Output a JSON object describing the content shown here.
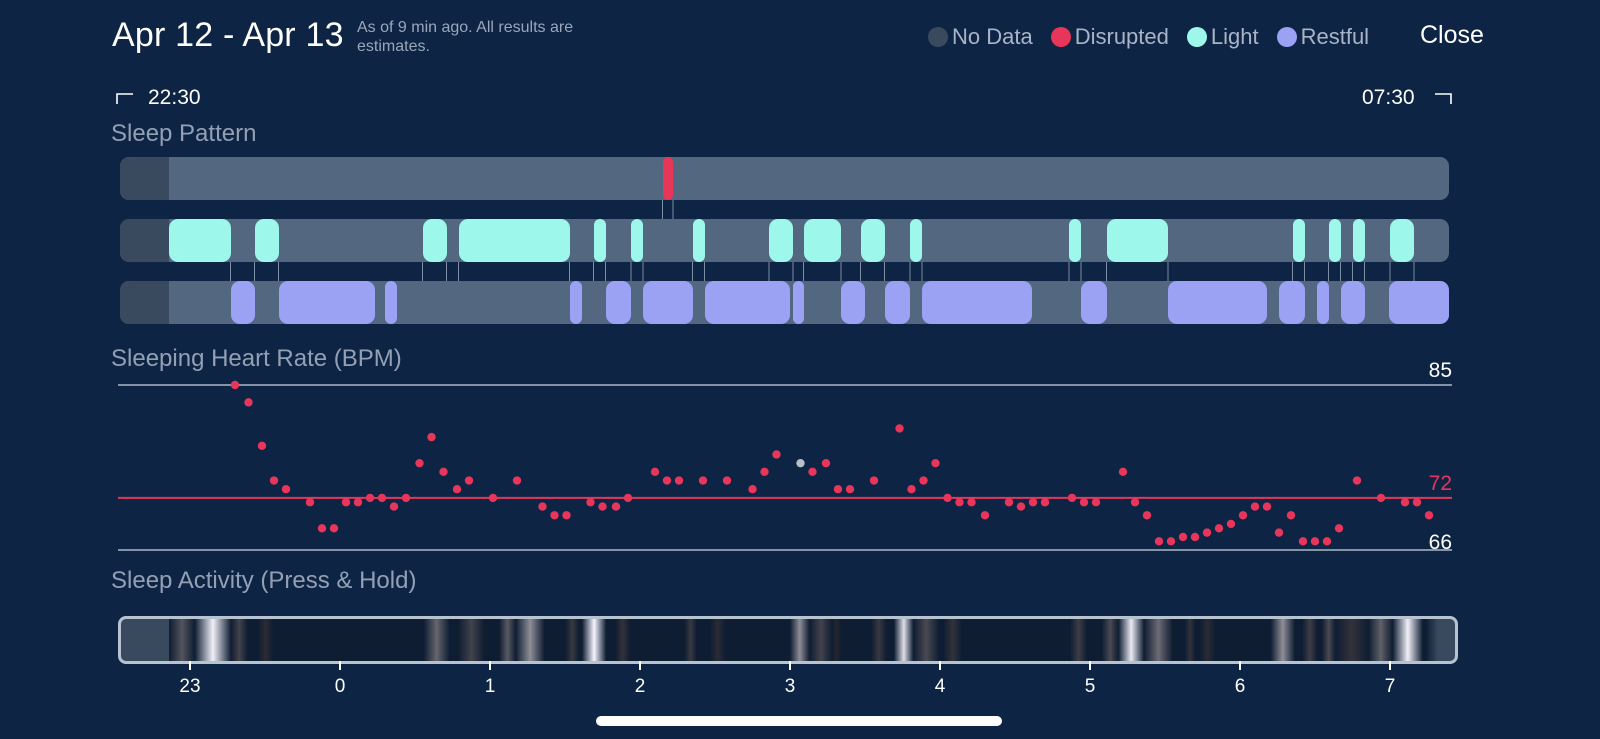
{
  "header": {
    "title": "Apr 12 - Apr 13",
    "note": "As of 9 min ago. All results are estimates.",
    "close_label": "Close"
  },
  "legend": [
    {
      "label": "No Data",
      "color": "#3a4a5e"
    },
    {
      "label": "Disrupted",
      "color": "#e8355a"
    },
    {
      "label": "Light",
      "color": "#9ef7eb"
    },
    {
      "label": "Restful",
      "color": "#9ba1f3"
    }
  ],
  "timeline": {
    "start_label": "22:30",
    "end_label": "07:30"
  },
  "sleep_pattern": {
    "title": "Sleep Pattern",
    "colors": {
      "no_data": "#3a4a5e",
      "track": "#536781",
      "disrupted": "#e8355a",
      "light": "#9ef7eb",
      "restful": "#9ba1f3"
    },
    "no_data_end_hour": -1.14,
    "disrupted": [
      [
        2.15,
        2.22
      ]
    ],
    "light": [
      [
        -1.14,
        -0.73
      ],
      [
        -0.57,
        -0.41
      ],
      [
        0.55,
        0.71
      ],
      [
        0.79,
        1.53
      ],
      [
        1.69,
        1.77
      ],
      [
        1.94,
        2.02
      ],
      [
        2.35,
        2.43
      ],
      [
        2.86,
        3.02
      ],
      [
        3.09,
        3.34
      ],
      [
        3.47,
        3.63
      ],
      [
        3.8,
        3.88
      ],
      [
        4.86,
        4.94
      ],
      [
        5.11,
        5.52
      ],
      [
        6.35,
        6.43
      ],
      [
        6.59,
        6.67
      ],
      [
        6.75,
        6.83
      ],
      [
        7.0,
        7.16
      ]
    ],
    "restful": [
      [
        -0.73,
        -0.57
      ],
      [
        -0.41,
        0.23
      ],
      [
        0.3,
        0.38
      ],
      [
        1.53,
        1.61
      ],
      [
        1.77,
        1.94
      ],
      [
        2.02,
        2.35
      ],
      [
        2.43,
        3.0
      ],
      [
        3.02,
        3.09
      ],
      [
        3.34,
        3.5
      ],
      [
        3.63,
        3.8
      ],
      [
        3.88,
        4.61
      ],
      [
        4.94,
        5.11
      ],
      [
        5.52,
        6.18
      ],
      [
        6.26,
        6.43
      ],
      [
        6.51,
        6.59
      ],
      [
        6.67,
        6.83
      ],
      [
        6.99,
        7.4
      ]
    ]
  },
  "heart_rate": {
    "title": "Sleeping Heart Rate (BPM)",
    "max": 85,
    "avg": 72,
    "min": 66,
    "color": "#e8355a",
    "gray_color": "#b9bfc8",
    "gray_point_index": 36,
    "points": [
      [
        -0.7,
        85
      ],
      [
        -0.61,
        83
      ],
      [
        -0.52,
        78
      ],
      [
        -0.44,
        74
      ],
      [
        -0.36,
        73
      ],
      [
        -0.2,
        71.5
      ],
      [
        -0.12,
        68.5
      ],
      [
        -0.04,
        68.5
      ],
      [
        0.04,
        71.5
      ],
      [
        0.12,
        71.5
      ],
      [
        0.2,
        72
      ],
      [
        0.28,
        72
      ],
      [
        0.36,
        71
      ],
      [
        0.44,
        72
      ],
      [
        0.53,
        76
      ],
      [
        0.61,
        79
      ],
      [
        0.69,
        75
      ],
      [
        0.78,
        73
      ],
      [
        0.86,
        74
      ],
      [
        1.02,
        72
      ],
      [
        1.18,
        74
      ],
      [
        1.35,
        71
      ],
      [
        1.43,
        70
      ],
      [
        1.51,
        70
      ],
      [
        1.67,
        71.5
      ],
      [
        1.75,
        71
      ],
      [
        1.84,
        71
      ],
      [
        1.92,
        72
      ],
      [
        2.1,
        75
      ],
      [
        2.18,
        74
      ],
      [
        2.26,
        74
      ],
      [
        2.42,
        74
      ],
      [
        2.58,
        74
      ],
      [
        2.75,
        73
      ],
      [
        2.83,
        75
      ],
      [
        2.91,
        77
      ],
      [
        3.07,
        76
      ],
      [
        3.15,
        75
      ],
      [
        3.24,
        76
      ],
      [
        3.32,
        73
      ],
      [
        3.4,
        73
      ],
      [
        3.56,
        74
      ],
      [
        3.73,
        80
      ],
      [
        3.81,
        73
      ],
      [
        3.89,
        74
      ],
      [
        3.97,
        76
      ],
      [
        4.05,
        72
      ],
      [
        4.13,
        71.5
      ],
      [
        4.21,
        71.5
      ],
      [
        4.3,
        70
      ],
      [
        4.46,
        71.5
      ],
      [
        4.54,
        71
      ],
      [
        4.62,
        71.5
      ],
      [
        4.7,
        71.5
      ],
      [
        4.88,
        72
      ],
      [
        4.96,
        71.5
      ],
      [
        5.04,
        71.5
      ],
      [
        5.22,
        75
      ],
      [
        5.3,
        71.5
      ],
      [
        5.38,
        70
      ],
      [
        5.46,
        67
      ],
      [
        5.54,
        67
      ],
      [
        5.62,
        67.5
      ],
      [
        5.7,
        67.5
      ],
      [
        5.78,
        68
      ],
      [
        5.86,
        68.5
      ],
      [
        5.94,
        69
      ],
      [
        6.02,
        70
      ],
      [
        6.1,
        71
      ],
      [
        6.18,
        71
      ],
      [
        6.26,
        68
      ],
      [
        6.34,
        70
      ],
      [
        6.42,
        67
      ],
      [
        6.5,
        67
      ],
      [
        6.58,
        67
      ],
      [
        6.66,
        68.5
      ],
      [
        6.78,
        74
      ],
      [
        6.94,
        72
      ],
      [
        7.1,
        71.5
      ],
      [
        7.18,
        71.5
      ],
      [
        7.26,
        70
      ]
    ]
  },
  "activity": {
    "title": "Sleep Activity (Press & Hold)",
    "bands": [
      [
        -1.14,
        -0.97,
        0.3
      ],
      [
        -0.97,
        -0.73,
        0.98
      ],
      [
        -0.73,
        -0.62,
        0.22
      ],
      [
        -0.55,
        -0.45,
        0.12
      ],
      [
        0.55,
        0.72,
        0.38
      ],
      [
        0.78,
        0.95,
        0.22
      ],
      [
        1.05,
        1.16,
        0.32
      ],
      [
        1.16,
        1.35,
        0.55
      ],
      [
        1.49,
        1.58,
        0.18
      ],
      [
        1.6,
        1.76,
        1.0
      ],
      [
        1.82,
        1.92,
        0.15
      ],
      [
        2.28,
        2.36,
        0.18
      ],
      [
        2.45,
        2.55,
        0.12
      ],
      [
        2.98,
        3.11,
        0.55
      ],
      [
        3.11,
        3.26,
        0.22
      ],
      [
        3.26,
        3.32,
        0.1
      ],
      [
        3.52,
        3.62,
        0.18
      ],
      [
        3.67,
        3.8,
        0.9
      ],
      [
        3.8,
        3.97,
        0.25
      ],
      [
        4.0,
        4.12,
        0.15
      ],
      [
        4.84,
        4.95,
        0.2
      ],
      [
        5.05,
        5.16,
        0.25
      ],
      [
        5.16,
        5.33,
        0.95
      ],
      [
        5.33,
        5.52,
        0.4
      ],
      [
        5.6,
        5.67,
        0.15
      ],
      [
        5.7,
        5.8,
        0.12
      ],
      [
        6.17,
        6.33,
        0.55
      ],
      [
        6.38,
        6.48,
        0.2
      ],
      [
        6.51,
        6.6,
        0.25
      ],
      [
        6.6,
        6.82,
        0.15
      ],
      [
        6.82,
        6.98,
        0.35
      ],
      [
        6.98,
        7.18,
        0.98
      ]
    ]
  },
  "axis": {
    "ticks": [
      {
        "hour": -1,
        "label": "23"
      },
      {
        "hour": 0,
        "label": "0"
      },
      {
        "hour": 1,
        "label": "1"
      },
      {
        "hour": 2,
        "label": "2"
      },
      {
        "hour": 3,
        "label": "3"
      },
      {
        "hour": 4,
        "label": "4"
      },
      {
        "hour": 5,
        "label": "5"
      },
      {
        "hour": 6,
        "label": "6"
      },
      {
        "hour": 7,
        "label": "7"
      }
    ]
  }
}
